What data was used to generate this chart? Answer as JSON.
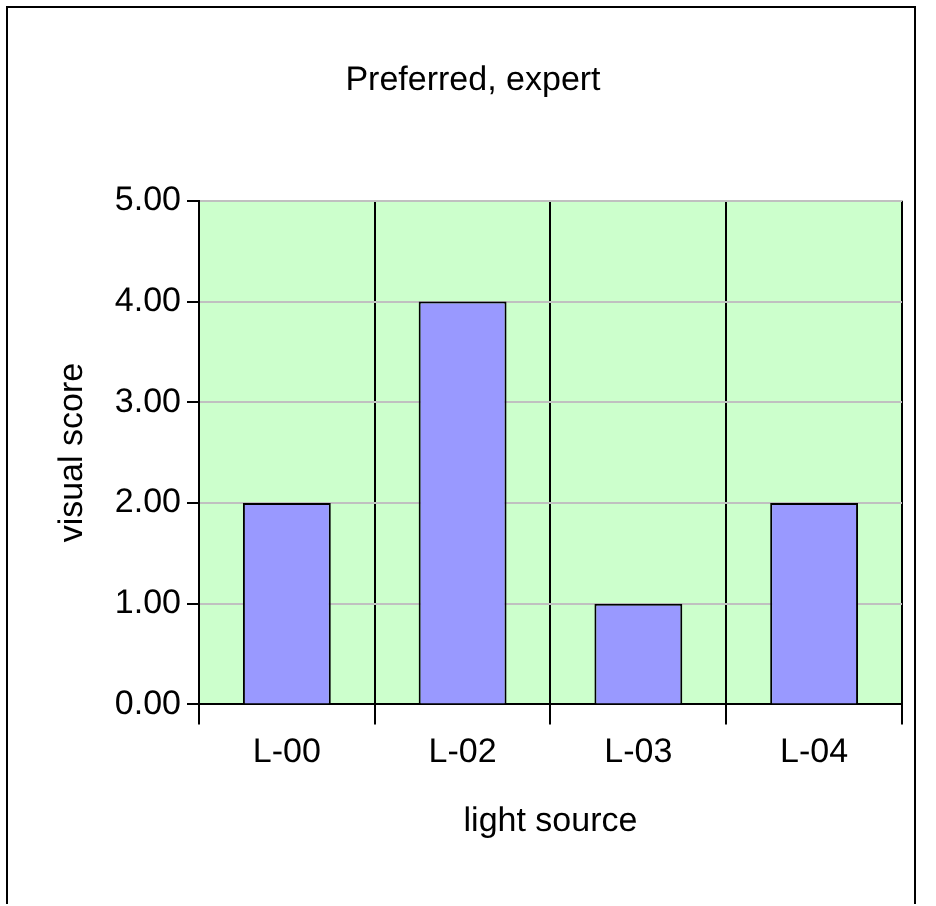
{
  "chart_data": {
    "type": "bar",
    "title": "Preferred, expert",
    "xlabel": "light source",
    "ylabel": "visual score",
    "categories": [
      "L-00",
      "L-02",
      "L-03",
      "L-04"
    ],
    "values": [
      2,
      4,
      1,
      2
    ],
    "color": "#9999ff",
    "ylim": [
      0,
      5
    ],
    "yticks": [
      {
        "value": 0,
        "label": "0.00"
      },
      {
        "value": 1,
        "label": "1.00"
      },
      {
        "value": 2,
        "label": "2.00"
      },
      {
        "value": 3,
        "label": "3.00"
      },
      {
        "value": 4,
        "label": "4.00"
      },
      {
        "value": 5,
        "label": "5.00"
      }
    ],
    "grid": true,
    "legend": false
  }
}
